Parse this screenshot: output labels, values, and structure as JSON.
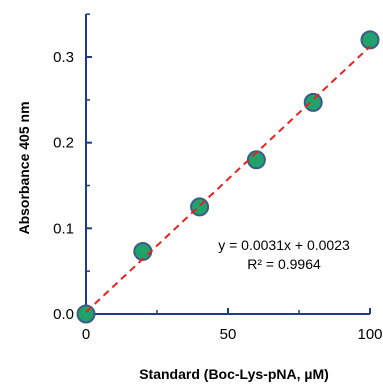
{
  "chart_data": {
    "type": "scatter",
    "title": "",
    "xlabel": "Standard (Boc-Lys-pNA, µM)",
    "ylabel": "Absorbance 405 nm",
    "xlim": [
      0,
      100
    ],
    "ylim": [
      0,
      0.35
    ],
    "x_ticks": [
      0,
      50,
      100
    ],
    "x_tick_labels": [
      "0",
      "50",
      "100"
    ],
    "y_ticks": [
      0,
      0.1,
      0.2,
      0.3
    ],
    "y_tick_labels": [
      "0.0",
      "0.1",
      "0.2",
      "0.3"
    ],
    "grid": false,
    "legend": "none",
    "series": [
      {
        "x": [
          0,
          20,
          40,
          60,
          80,
          100
        ],
        "y": [
          0.0,
          0.073,
          0.125,
          0.18,
          0.247,
          0.32
        ],
        "marker": "circle",
        "marker_color": "#1fa36b",
        "marker_edge_color": "#3d5a8a"
      }
    ],
    "trendline": {
      "style": "dashed",
      "color": "#e8231f",
      "slope": 0.0031,
      "intercept": 0.0023,
      "x_range": [
        0,
        100
      ]
    },
    "annotations": [
      "y = 0.0031x + 0.0023",
      "R² = 0.9964"
    ],
    "axis_color": "#1f3b8c"
  }
}
